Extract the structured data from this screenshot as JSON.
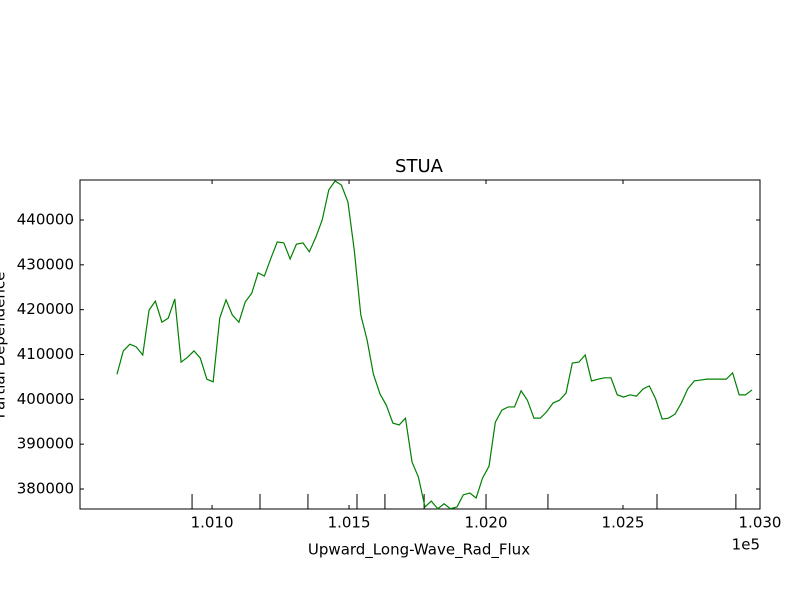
{
  "chart_data": {
    "type": "line",
    "title": "STUA",
    "x_label": "Upward_Long-Wave_Rad_Flux",
    "y_label": "Partial Dependence",
    "x_offset_label": "1e5",
    "color": "#008000",
    "x": [
      100653,
      100676,
      100700,
      100723,
      100747,
      100770,
      100793,
      100817,
      100840,
      100864,
      100887,
      100911,
      100934,
      100957,
      100981,
      101004,
      101028,
      101051,
      101074,
      101098,
      101121,
      101145,
      101168,
      101191,
      101215,
      101238,
      101262,
      101285,
      101308,
      101332,
      101355,
      101379,
      101402,
      101426,
      101449,
      101472,
      101496,
      101519,
      101543,
      101566,
      101589,
      101613,
      101636,
      101660,
      101683,
      101706,
      101730,
      101753,
      101777,
      101800,
      101824,
      101847,
      101870,
      101894,
      101917,
      101941,
      101964,
      101987,
      102011,
      102034,
      102058,
      102081,
      102104,
      102128,
      102151,
      102175,
      102198,
      102221,
      102245,
      102268,
      102292,
      102315,
      102339,
      102362,
      102385,
      102409,
      102432,
      102456,
      102479,
      102502,
      102526,
      102549,
      102573,
      102596,
      102619,
      102643,
      102666,
      102690,
      102713,
      102736,
      102760,
      102783,
      102807,
      102830,
      102853,
      102877,
      102900,
      102924,
      102947,
      102971
    ],
    "values": [
      405600,
      410800,
      412300,
      411700,
      409900,
      419900,
      421900,
      417200,
      418100,
      422400,
      408300,
      409400,
      410800,
      409200,
      404500,
      403900,
      418100,
      422200,
      418800,
      417200,
      421700,
      423700,
      428200,
      427500,
      431500,
      435100,
      434900,
      431300,
      434600,
      434900,
      432900,
      436200,
      440000,
      446700,
      448700,
      447800,
      444000,
      433300,
      418800,
      413200,
      405600,
      401200,
      398700,
      394700,
      394300,
      395800,
      386000,
      382700,
      376000,
      377300,
      375600,
      376700,
      375600,
      376000,
      378700,
      379100,
      378000,
      382400,
      385100,
      394900,
      397600,
      398300,
      398300,
      401900,
      399800,
      395800,
      395800,
      397200,
      399200,
      399800,
      401400,
      408100,
      408300,
      409900,
      404100,
      404500,
      404800,
      404800,
      401000,
      400500,
      401000,
      400700,
      402300,
      403000,
      400100,
      395600,
      395800,
      396700,
      399200,
      402300,
      404100,
      404300,
      404500,
      404500,
      404500,
      404500,
      405900,
      401000,
      401000,
      402100
    ],
    "deciles": [
      100927,
      101175,
      101350,
      101529,
      101631,
      101774,
      102000,
      102226,
      102624,
      102912
    ],
    "xlim": [
      100518,
      103000
    ],
    "xticks": [
      {
        "value": 101000,
        "label": "1.010"
      },
      {
        "value": 101500,
        "label": "1.015"
      },
      {
        "value": 102000,
        "label": "1.020"
      },
      {
        "value": 102500,
        "label": "1.025"
      },
      {
        "value": 103000,
        "label": "1.030"
      }
    ],
    "ylim": [
      375540,
      448920
    ],
    "yticks": [
      380000,
      390000,
      400000,
      410000,
      420000,
      430000,
      440000
    ]
  }
}
